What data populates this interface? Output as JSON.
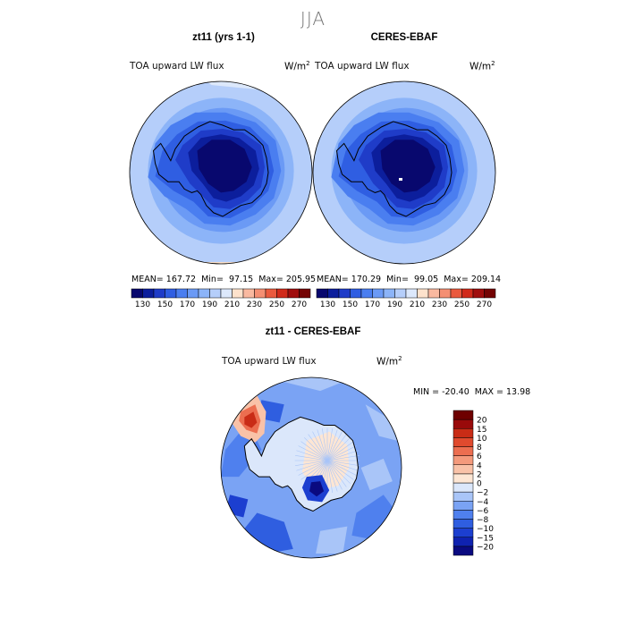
{
  "figure": {
    "season": "JJA",
    "variable": "TOA upward LW flux",
    "units_base": "W/m",
    "units_exp": "2"
  },
  "panels": {
    "model": {
      "title": "zt11 (yrs 1-1)",
      "stats": {
        "mean_label": "MEAN=",
        "mean": "167.72",
        "min_label": "Min=",
        "min": "97.15",
        "max_label": "Max=",
        "max": "205.95"
      }
    },
    "obs": {
      "title": "CERES-EBAF",
      "stats": {
        "mean_label": "MEAN=",
        "mean": "170.29",
        "min_label": "Min=",
        "min": "99.05",
        "max_label": "Max=",
        "max": "209.14"
      }
    },
    "diff": {
      "title": "zt11 - CERES-EBAF",
      "stats": {
        "min_label": "MIN =",
        "min": "-20.40",
        "max_label": "MAX =",
        "max": "13.98"
      }
    }
  },
  "chart_data": [
    {
      "type": "heatmap",
      "projection": "south-polar-stereographic",
      "title": "zt11 (yrs 1-1)",
      "label": "TOA upward LW flux",
      "units": "W/m^2",
      "levels": [
        130,
        140,
        150,
        160,
        170,
        180,
        190,
        200,
        210,
        220,
        230,
        240,
        250,
        260,
        270
      ],
      "colors": [
        "#08086e",
        "#0c1e9c",
        "#1f3cc8",
        "#2f5ee2",
        "#4a7ef0",
        "#6b9af5",
        "#8cb4f8",
        "#b5cefa",
        "#dce8fb",
        "#fde2cc",
        "#f9b9a0",
        "#f48f73",
        "#ea5a3e",
        "#d12a1a",
        "#a00e0e",
        "#740404"
      ],
      "colorbar_ticks": [
        130,
        150,
        170,
        190,
        210,
        230,
        250,
        270
      ],
      "mean": 167.72,
      "min": 97.15,
      "max": 205.95
    },
    {
      "type": "heatmap",
      "projection": "south-polar-stereographic",
      "title": "CERES-EBAF",
      "label": "TOA upward LW flux",
      "units": "W/m^2",
      "levels": [
        130,
        140,
        150,
        160,
        170,
        180,
        190,
        200,
        210,
        220,
        230,
        240,
        250,
        260,
        270
      ],
      "colorbar_ticks": [
        130,
        150,
        170,
        190,
        210,
        230,
        250,
        270
      ],
      "mean": 170.29,
      "min": 99.05,
      "max": 209.14
    },
    {
      "type": "heatmap",
      "projection": "south-polar-stereographic",
      "title": "zt11 - CERES-EBAF",
      "label": "TOA upward LW flux",
      "units": "W/m^2",
      "levels": [
        -20,
        -15,
        -10,
        -8,
        -6,
        -4,
        -2,
        0,
        2,
        4,
        6,
        8,
        10,
        15,
        20
      ],
      "level_labels": [
        "−20",
        "−15",
        "−10",
        "−8",
        "−6",
        "−4",
        "−2",
        "0",
        "2",
        "4",
        "6",
        "8",
        "10",
        "15",
        "20"
      ],
      "colors": [
        "#0a0a80",
        "#0f22b0",
        "#1c3fd0",
        "#2f5ee0",
        "#4f80ee",
        "#7aa3f4",
        "#a9c5f8",
        "#dbe7fb",
        "#fde6d4",
        "#f9c2a8",
        "#f49a7c",
        "#ec6e50",
        "#e04a2e",
        "#c92c16",
        "#990a0a",
        "#6e0000"
      ],
      "min": -20.4,
      "max": 13.98
    }
  ]
}
